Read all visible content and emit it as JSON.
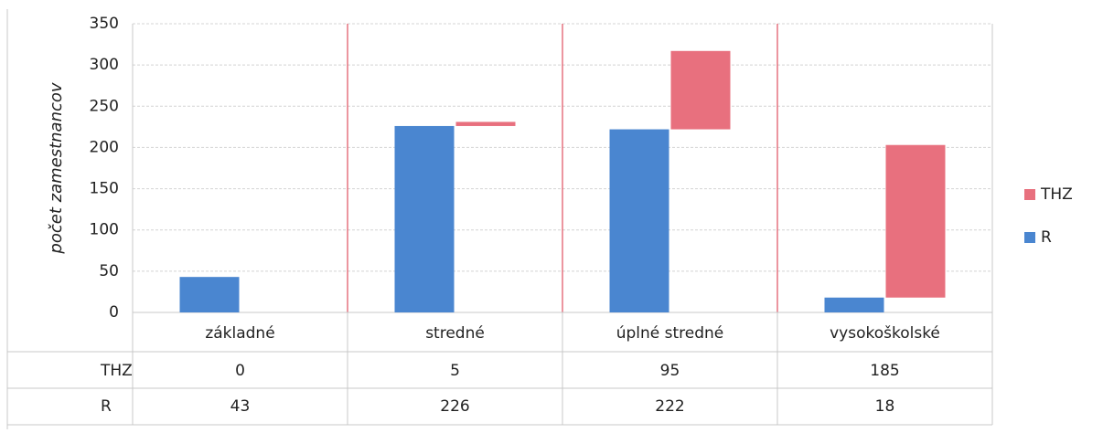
{
  "chart_data": {
    "type": "bar",
    "stacked": true,
    "y_axis_label": "počet zamestnancov",
    "categories": [
      "základné",
      "stredné",
      "úplné stredné",
      "vysokoškolské"
    ],
    "series": [
      {
        "name": "THZ",
        "color": "#e8707e",
        "values": [
          0,
          5,
          95,
          185
        ]
      },
      {
        "name": "R",
        "color": "#4a86d0",
        "values": [
          43,
          226,
          222,
          18
        ]
      }
    ],
    "ylim": [
      0,
      350
    ],
    "yticks": [
      0,
      50,
      100,
      150,
      200,
      250,
      300,
      350
    ],
    "grid": true,
    "legend": "right"
  }
}
